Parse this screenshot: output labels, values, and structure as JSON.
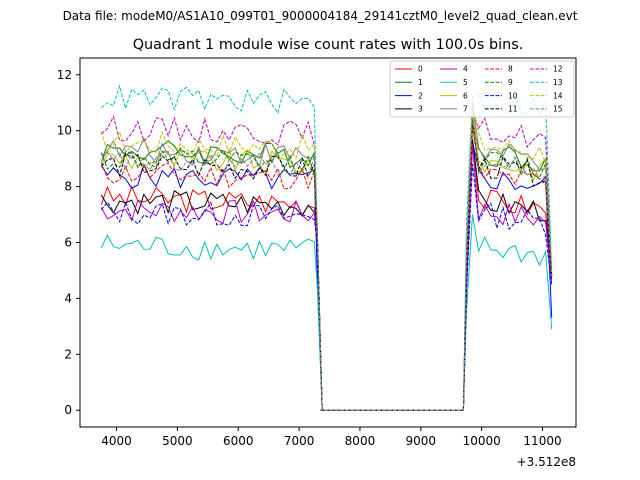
{
  "figure": {
    "suptitle": "Data file: modeM0/AS1A10_099T01_9000004184_29141cztM0_level2_quad_clean.evt"
  },
  "chart_data": {
    "type": "line",
    "title": "Quadrant 1 module wise count rates with 100.0s bins.",
    "xlabel": "",
    "ylabel": "",
    "x_offset_label": "+3.512e8",
    "xlim": [
      3400,
      11550
    ],
    "ylim": [
      -0.6,
      12.6
    ],
    "xticks": [
      4000,
      5000,
      6000,
      7000,
      8000,
      9000,
      10000,
      11000
    ],
    "yticks": [
      0,
      2,
      4,
      6,
      8,
      10,
      12
    ],
    "legend_position": "top-right",
    "seg1_x": [
      3750,
      3850,
      3950,
      4050,
      4150,
      4250,
      4350,
      4450,
      4550,
      4650,
      4750,
      4850,
      4950,
      5050,
      5150,
      5250,
      5350,
      5450,
      5550,
      5650,
      5750,
      5850,
      5950,
      6050,
      6150,
      6250,
      6350,
      6450,
      6550,
      6650,
      6750,
      6850,
      6950,
      7050,
      7150,
      7250,
      7300
    ],
    "gap_x": [
      7350,
      7450,
      7550,
      7650,
      7750,
      7850,
      7950,
      8050,
      8150,
      8250,
      8350,
      8450,
      8550,
      8650,
      8750,
      8850,
      8950,
      9050,
      9150,
      9250,
      9350,
      9450,
      9550,
      9650,
      9700
    ],
    "seg2_x": [
      9750,
      9850,
      9950,
      10050,
      10150,
      10250,
      10350,
      10450,
      10550,
      10650,
      10750,
      10850,
      10950,
      11050,
      11150
    ],
    "series": [
      {
        "name": "0",
        "color": "#ff0000",
        "dash": false,
        "level": 7.6,
        "peak": 9.7,
        "end": 4.7
      },
      {
        "name": "1",
        "color": "#008000",
        "dash": false,
        "level": 9.3,
        "peak": 10.3,
        "end": 4.8
      },
      {
        "name": "2",
        "color": "#0000ff",
        "dash": false,
        "level": 8.4,
        "peak": 9.6,
        "end": 3.3
      },
      {
        "name": "3",
        "color": "#000000",
        "dash": false,
        "level": 7.5,
        "peak": 9.7,
        "end": 4.8
      },
      {
        "name": "4",
        "color": "#bf00bf",
        "dash": false,
        "level": 7.2,
        "peak": 9.5,
        "end": 4.6
      },
      {
        "name": "5",
        "color": "#00bfbf",
        "dash": false,
        "level": 5.9,
        "peak": 7.0,
        "end": 2.9
      },
      {
        "name": "6",
        "color": "#bfbf00",
        "dash": false,
        "level": 9.0,
        "peak": 10.8,
        "end": 4.8
      },
      {
        "name": "7",
        "color": "#808080",
        "dash": false,
        "level": 9.3,
        "peak": 11.0,
        "end": 4.8
      },
      {
        "name": "8",
        "color": "#ff0000",
        "dash": true,
        "level": 8.5,
        "peak": 10.1,
        "end": 4.7
      },
      {
        "name": "9",
        "color": "#008000",
        "dash": true,
        "level": 9.0,
        "peak": 10.4,
        "end": 4.8
      },
      {
        "name": "10",
        "color": "#0000ff",
        "dash": true,
        "level": 7.1,
        "peak": 8.8,
        "end": 4.5
      },
      {
        "name": "11",
        "color": "#000000",
        "dash": true,
        "level": 8.8,
        "peak": 10.4,
        "end": 4.8
      },
      {
        "name": "12",
        "color": "#bf00bf",
        "dash": true,
        "level": 10.1,
        "peak": 10.7,
        "end": 4.9
      },
      {
        "name": "13",
        "color": "#00bfbf",
        "dash": true,
        "level": 11.2,
        "peak": 11.2,
        "end": 5.0
      },
      {
        "name": "14",
        "color": "#bfbf00",
        "dash": true,
        "level": 9.6,
        "peak": 10.9,
        "end": 4.9
      },
      {
        "name": "15",
        "color": "#808080",
        "dash": true,
        "level": 8.9,
        "peak": 10.5,
        "end": 4.8
      }
    ]
  }
}
